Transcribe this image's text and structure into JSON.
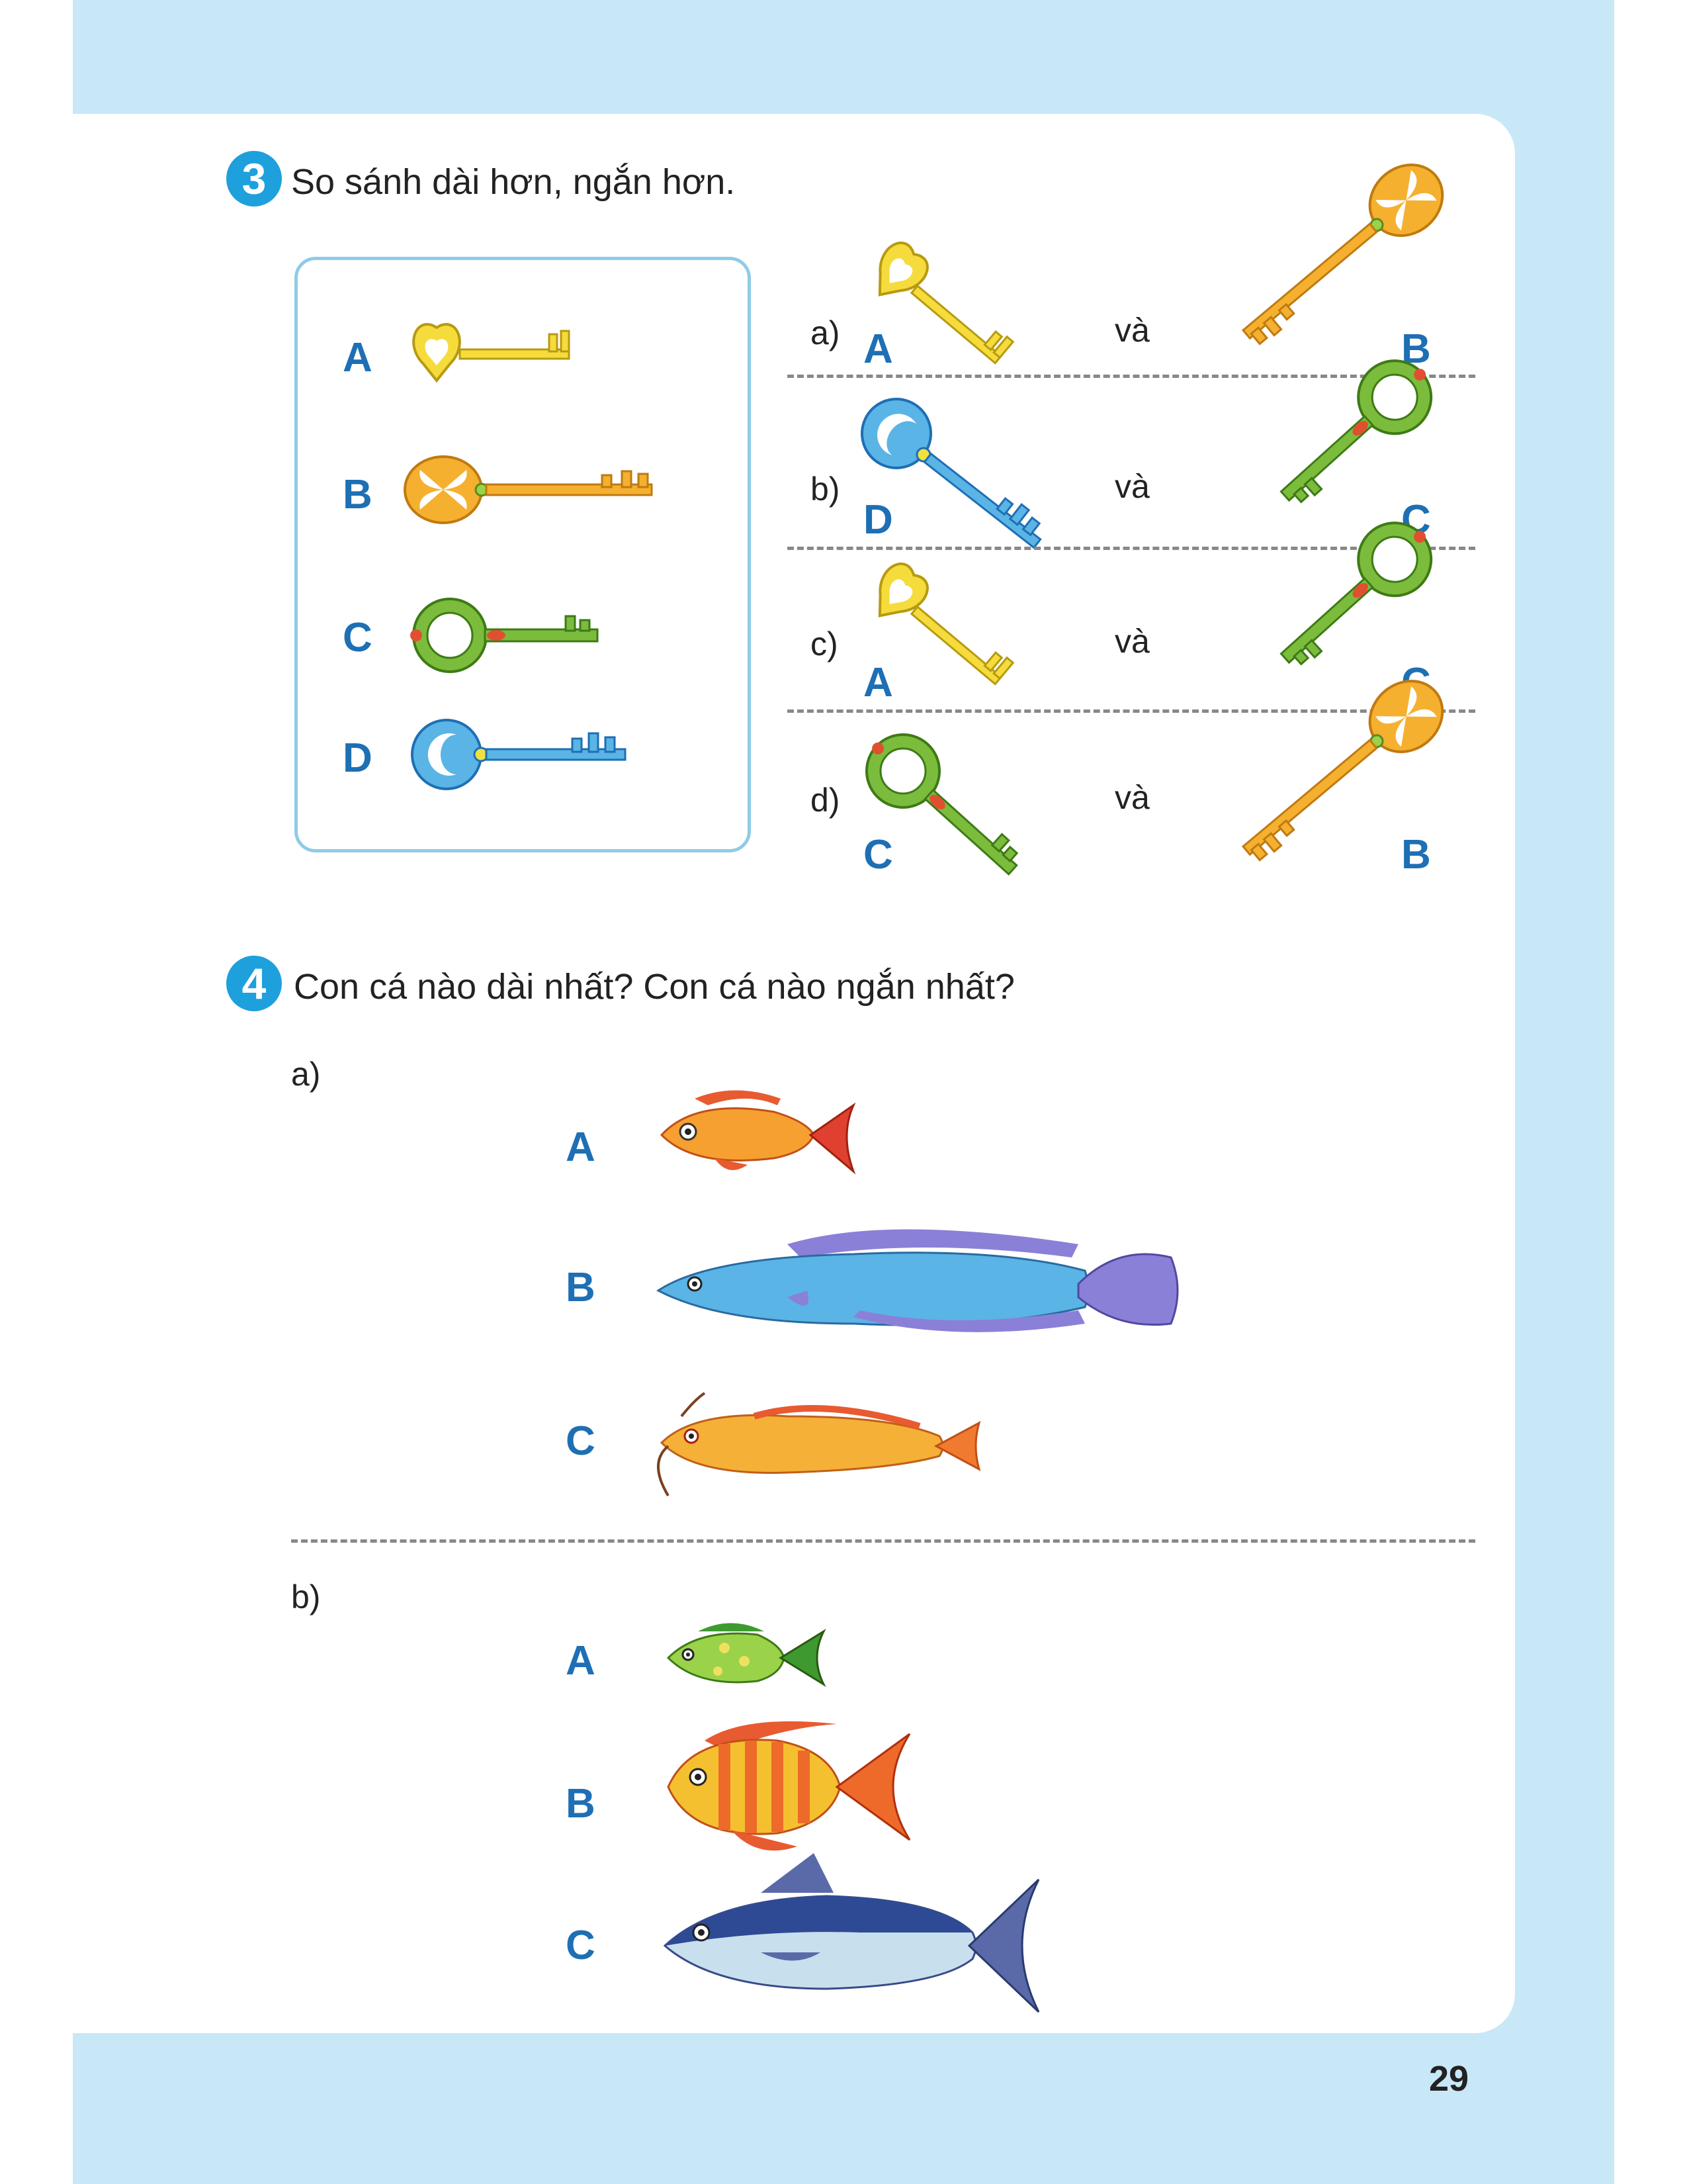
{
  "page_number": "29",
  "q3": {
    "number": "3",
    "title": "So sánh dài hơn, ngắn hơn.",
    "reference_keys": [
      "A",
      "B",
      "C",
      "D"
    ],
    "pairs": [
      {
        "sub": "a)",
        "left": "A",
        "joiner": "và",
        "right": "B"
      },
      {
        "sub": "b)",
        "left": "D",
        "joiner": "và",
        "right": "C"
      },
      {
        "sub": "c)",
        "left": "A",
        "joiner": "và",
        "right": "C"
      },
      {
        "sub": "d)",
        "left": "C",
        "joiner": "và",
        "right": "B"
      }
    ]
  },
  "q4": {
    "number": "4",
    "title": "Con cá nào dài nhất? Con cá nào ngắn nhất?",
    "part_a": {
      "sub": "a)",
      "labels": [
        "A",
        "B",
        "C"
      ]
    },
    "part_b": {
      "sub": "b)",
      "labels": [
        "A",
        "B",
        "C"
      ]
    }
  },
  "colors": {
    "accent": "#1ea0dc",
    "label": "#1e6fb4",
    "page_bg": "#c8e8f8",
    "key_yellow": "#f5dc3c",
    "key_orange": "#f5b030",
    "key_green": "#7cbc3c",
    "key_blue": "#5ab4e6"
  },
  "icons": {
    "key": "key-icon",
    "fish": "fish-icon"
  }
}
